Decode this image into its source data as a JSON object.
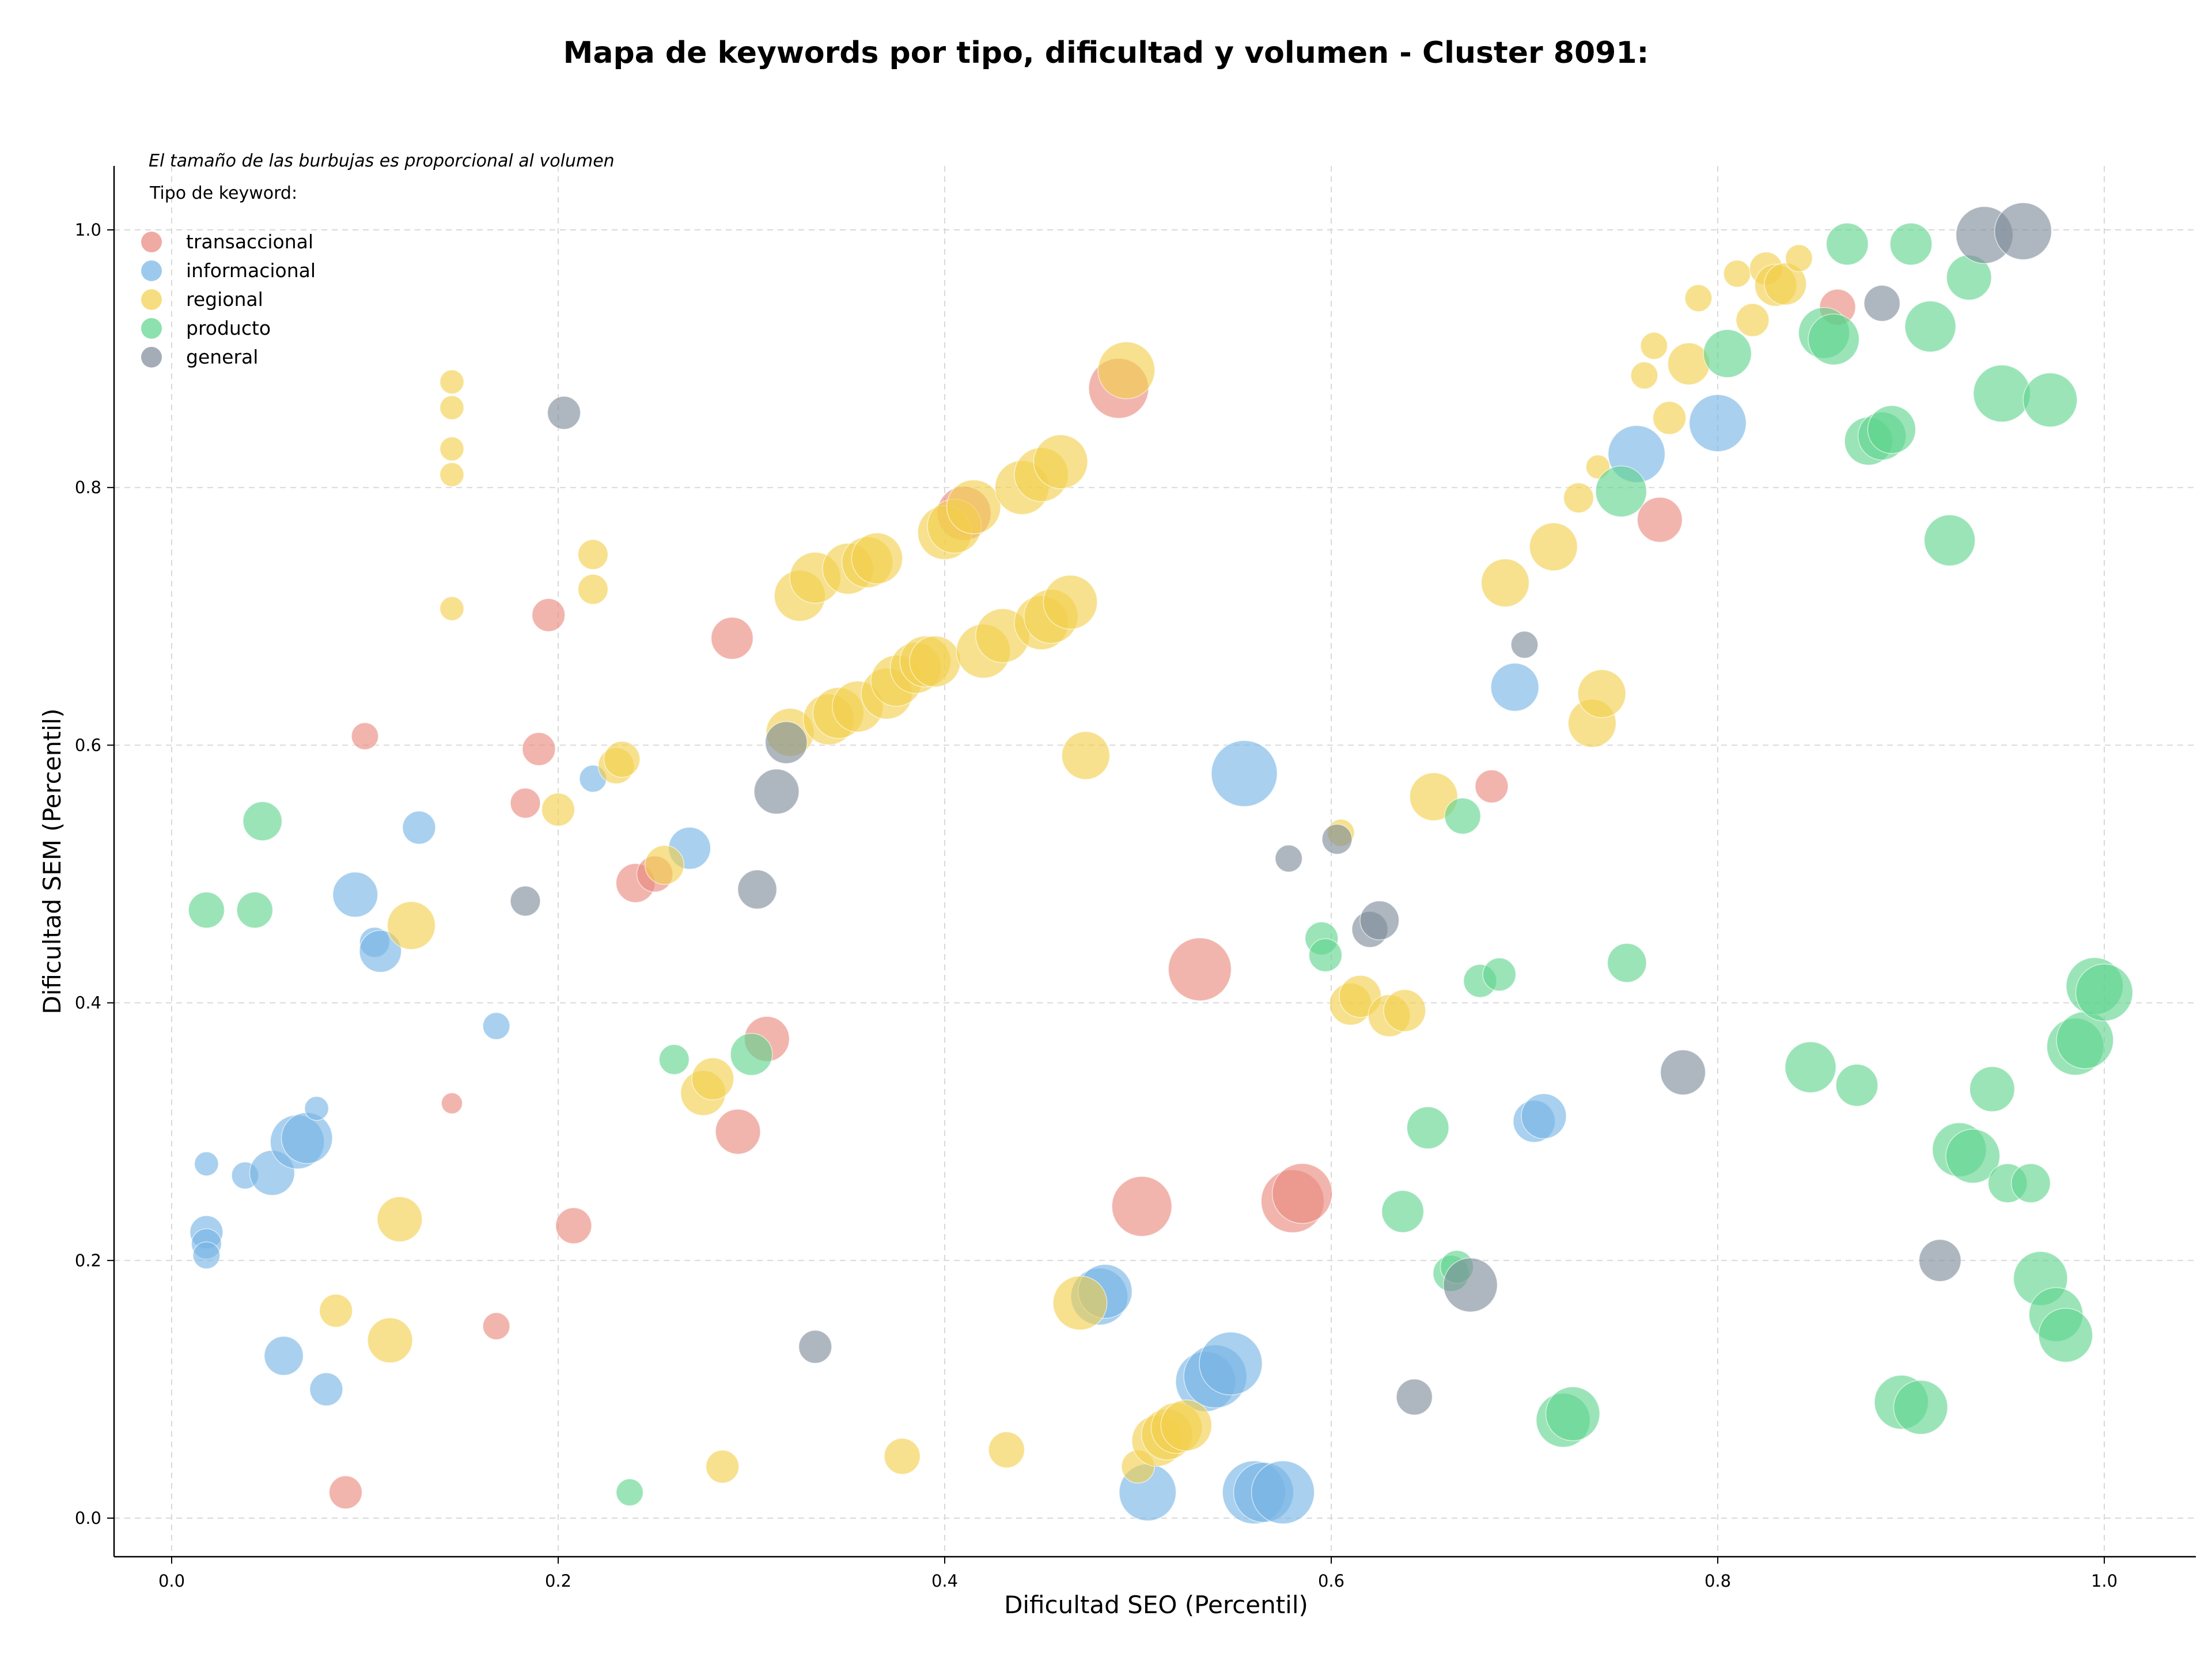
{
  "chart_data": {
    "type": "scatter",
    "title": "Mapa de keywords por tipo, dificultad y volumen - Cluster 8091:",
    "xlabel": "Dificultad SEO (Percentil)",
    "ylabel": "Dificultad SEM (Percentil)",
    "xlim": [
      -0.03,
      1.05
    ],
    "ylim": [
      -0.03,
      1.05
    ],
    "xticks": [
      "0.0",
      "0.2",
      "0.4",
      "0.6",
      "0.8",
      "1.0"
    ],
    "yticks": [
      "0.0",
      "0.2",
      "0.4",
      "0.6",
      "0.8",
      "1.0"
    ],
    "grid": true,
    "note": "El tamaño de las burbujas es proporcional al volumen",
    "legend_title": "Tipo de keyword:",
    "legend_position": "top-left",
    "series": [
      {
        "name": "transaccional",
        "color": "#E8887C",
        "points": [
          [
            0.09,
            0.02,
            0.55
          ],
          [
            0.1,
            0.607,
            0.45
          ],
          [
            0.145,
            0.322,
            0.35
          ],
          [
            0.168,
            0.149,
            0.45
          ],
          [
            0.183,
            0.555,
            0.5
          ],
          [
            0.19,
            0.597,
            0.55
          ],
          [
            0.195,
            0.701,
            0.55
          ],
          [
            0.208,
            0.227,
            0.6
          ],
          [
            0.24,
            0.493,
            0.65
          ],
          [
            0.25,
            0.5,
            0.6
          ],
          [
            0.29,
            0.683,
            0.7
          ],
          [
            0.293,
            0.3,
            0.75
          ],
          [
            0.308,
            0.372,
            0.75
          ],
          [
            0.41,
            0.78,
            0.9
          ],
          [
            0.49,
            0.877,
            1.0
          ],
          [
            0.502,
            0.242,
            1.0
          ],
          [
            0.532,
            0.426,
            1.05
          ],
          [
            0.58,
            0.246,
            1.05
          ],
          [
            0.585,
            0.252,
            1.0
          ],
          [
            0.683,
            0.568,
            0.55
          ],
          [
            0.77,
            0.775,
            0.75
          ],
          [
            0.862,
            0.94,
            0.6
          ]
        ]
      },
      {
        "name": "informacional",
        "color": "#74B3E4",
        "points": [
          [
            0.018,
            0.275,
            0.4
          ],
          [
            0.018,
            0.222,
            0.55
          ],
          [
            0.018,
            0.213,
            0.5
          ],
          [
            0.018,
            0.204,
            0.45
          ],
          [
            0.038,
            0.266,
            0.45
          ],
          [
            0.052,
            0.268,
            0.75
          ],
          [
            0.058,
            0.126,
            0.65
          ],
          [
            0.065,
            0.292,
            0.9
          ],
          [
            0.07,
            0.295,
            0.85
          ],
          [
            0.075,
            0.318,
            0.4
          ],
          [
            0.08,
            0.1,
            0.55
          ],
          [
            0.095,
            0.484,
            0.75
          ],
          [
            0.105,
            0.447,
            0.5
          ],
          [
            0.108,
            0.44,
            0.7
          ],
          [
            0.128,
            0.536,
            0.55
          ],
          [
            0.168,
            0.382,
            0.45
          ],
          [
            0.218,
            0.574,
            0.45
          ],
          [
            0.268,
            0.52,
            0.7
          ],
          [
            0.48,
            0.172,
            0.95
          ],
          [
            0.483,
            0.176,
            0.9
          ],
          [
            0.505,
            0.02,
            0.95
          ],
          [
            0.535,
            0.106,
            1.0
          ],
          [
            0.54,
            0.11,
            1.05
          ],
          [
            0.548,
            0.12,
            1.05
          ],
          [
            0.555,
            0.578,
            1.1
          ],
          [
            0.56,
            0.02,
            1.05
          ],
          [
            0.565,
            0.02,
            1.0
          ],
          [
            0.575,
            0.02,
            1.05
          ],
          [
            0.695,
            0.645,
            0.8
          ],
          [
            0.705,
            0.308,
            0.7
          ],
          [
            0.71,
            0.312,
            0.75
          ],
          [
            0.758,
            0.826,
            0.95
          ],
          [
            0.8,
            0.85,
            0.95
          ]
        ]
      },
      {
        "name": "regional",
        "color": "#F2CF4A",
        "points": [
          [
            0.085,
            0.161,
            0.55
          ],
          [
            0.113,
            0.138,
            0.75
          ],
          [
            0.118,
            0.232,
            0.75
          ],
          [
            0.124,
            0.46,
            0.8
          ],
          [
            0.145,
            0.882,
            0.4
          ],
          [
            0.145,
            0.862,
            0.4
          ],
          [
            0.145,
            0.83,
            0.4
          ],
          [
            0.145,
            0.81,
            0.4
          ],
          [
            0.145,
            0.706,
            0.4
          ],
          [
            0.2,
            0.55,
            0.55
          ],
          [
            0.218,
            0.748,
            0.5
          ],
          [
            0.218,
            0.721,
            0.5
          ],
          [
            0.23,
            0.584,
            0.6
          ],
          [
            0.233,
            0.589,
            0.6
          ],
          [
            0.255,
            0.507,
            0.65
          ],
          [
            0.275,
            0.33,
            0.75
          ],
          [
            0.28,
            0.341,
            0.7
          ],
          [
            0.285,
            0.04,
            0.55
          ],
          [
            0.32,
            0.61,
            0.8
          ],
          [
            0.325,
            0.716,
            0.85
          ],
          [
            0.333,
            0.73,
            0.85
          ],
          [
            0.34,
            0.62,
            0.85
          ],
          [
            0.345,
            0.625,
            0.85
          ],
          [
            0.35,
            0.737,
            0.85
          ],
          [
            0.355,
            0.63,
            0.85
          ],
          [
            0.36,
            0.742,
            0.85
          ],
          [
            0.365,
            0.745,
            0.85
          ],
          [
            0.37,
            0.64,
            0.85
          ],
          [
            0.375,
            0.65,
            0.85
          ],
          [
            0.385,
            0.66,
            0.85
          ],
          [
            0.39,
            0.665,
            0.85
          ],
          [
            0.395,
            0.665,
            0.85
          ],
          [
            0.378,
            0.048,
            0.6
          ],
          [
            0.4,
            0.765,
            0.9
          ],
          [
            0.405,
            0.77,
            0.9
          ],
          [
            0.415,
            0.785,
            0.9
          ],
          [
            0.42,
            0.673,
            0.9
          ],
          [
            0.43,
            0.685,
            0.9
          ],
          [
            0.432,
            0.053,
            0.6
          ],
          [
            0.44,
            0.8,
            0.9
          ],
          [
            0.45,
            0.81,
            0.9
          ],
          [
            0.45,
            0.695,
            0.9
          ],
          [
            0.455,
            0.7,
            0.9
          ],
          [
            0.46,
            0.82,
            0.9
          ],
          [
            0.465,
            0.711,
            0.9
          ],
          [
            0.47,
            0.167,
            0.9
          ],
          [
            0.473,
            0.592,
            0.8
          ],
          [
            0.494,
            0.891,
            0.95
          ],
          [
            0.5,
            0.04,
            0.55
          ],
          [
            0.51,
            0.06,
            0.85
          ],
          [
            0.515,
            0.065,
            0.85
          ],
          [
            0.52,
            0.07,
            0.85
          ],
          [
            0.525,
            0.072,
            0.85
          ],
          [
            0.605,
            0.532,
            0.45
          ],
          [
            0.61,
            0.399,
            0.7
          ],
          [
            0.615,
            0.405,
            0.7
          ],
          [
            0.63,
            0.39,
            0.7
          ],
          [
            0.638,
            0.394,
            0.7
          ],
          [
            0.653,
            0.56,
            0.8
          ],
          [
            0.69,
            0.726,
            0.8
          ],
          [
            0.715,
            0.754,
            0.8
          ],
          [
            0.728,
            0.792,
            0.5
          ],
          [
            0.735,
            0.617,
            0.8
          ],
          [
            0.74,
            0.64,
            0.8
          ],
          [
            0.738,
            0.816,
            0.4
          ],
          [
            0.762,
            0.887,
            0.45
          ],
          [
            0.767,
            0.91,
            0.45
          ],
          [
            0.775,
            0.854,
            0.55
          ],
          [
            0.785,
            0.896,
            0.7
          ],
          [
            0.79,
            0.947,
            0.45
          ],
          [
            0.81,
            0.966,
            0.45
          ],
          [
            0.818,
            0.93,
            0.55
          ],
          [
            0.825,
            0.97,
            0.55
          ],
          [
            0.83,
            0.957,
            0.7
          ],
          [
            0.835,
            0.958,
            0.7
          ],
          [
            0.842,
            0.978,
            0.45
          ]
        ]
      },
      {
        "name": "producto",
        "color": "#5DD48C",
        "points": [
          [
            0.018,
            0.472,
            0.6
          ],
          [
            0.043,
            0.472,
            0.6
          ],
          [
            0.047,
            0.541,
            0.65
          ],
          [
            0.237,
            0.02,
            0.45
          ],
          [
            0.26,
            0.356,
            0.5
          ],
          [
            0.3,
            0.36,
            0.7
          ],
          [
            0.595,
            0.45,
            0.55
          ],
          [
            0.597,
            0.437,
            0.55
          ],
          [
            0.637,
            0.238,
            0.7
          ],
          [
            0.65,
            0.303,
            0.7
          ],
          [
            0.662,
            0.19,
            0.6
          ],
          [
            0.665,
            0.195,
            0.55
          ],
          [
            0.668,
            0.545,
            0.6
          ],
          [
            0.677,
            0.417,
            0.55
          ],
          [
            0.687,
            0.422,
            0.55
          ],
          [
            0.72,
            0.076,
            0.9
          ],
          [
            0.725,
            0.081,
            0.9
          ],
          [
            0.75,
            0.797,
            0.85
          ],
          [
            0.753,
            0.431,
            0.65
          ],
          [
            0.805,
            0.904,
            0.8
          ],
          [
            0.848,
            0.35,
            0.85
          ],
          [
            0.855,
            0.92,
            0.85
          ],
          [
            0.86,
            0.915,
            0.85
          ],
          [
            0.867,
            0.989,
            0.7
          ],
          [
            0.872,
            0.336,
            0.7
          ],
          [
            0.878,
            0.836,
            0.8
          ],
          [
            0.885,
            0.84,
            0.8
          ],
          [
            0.89,
            0.845,
            0.8
          ],
          [
            0.895,
            0.09,
            0.9
          ],
          [
            0.9,
            0.989,
            0.7
          ],
          [
            0.905,
            0.086,
            0.9
          ],
          [
            0.91,
            0.925,
            0.85
          ],
          [
            0.92,
            0.759,
            0.85
          ],
          [
            0.925,
            0.286,
            0.9
          ],
          [
            0.93,
            0.963,
            0.75
          ],
          [
            0.932,
            0.281,
            0.9
          ],
          [
            0.942,
            0.333,
            0.75
          ],
          [
            0.947,
            0.873,
            0.95
          ],
          [
            0.95,
            0.26,
            0.65
          ],
          [
            0.962,
            0.26,
            0.65
          ],
          [
            0.967,
            0.186,
            0.9
          ],
          [
            0.972,
            0.868,
            0.9
          ],
          [
            0.975,
            0.158,
            0.9
          ],
          [
            0.98,
            0.142,
            0.9
          ],
          [
            0.985,
            0.366,
            0.95
          ],
          [
            0.99,
            0.371,
            0.95
          ],
          [
            0.995,
            0.413,
            0.95
          ],
          [
            1.0,
            0.408,
            0.95
          ]
        ]
      },
      {
        "name": "general",
        "color": "#7D8A98",
        "points": [
          [
            0.183,
            0.479,
            0.5
          ],
          [
            0.203,
            0.858,
            0.55
          ],
          [
            0.303,
            0.488,
            0.65
          ],
          [
            0.313,
            0.564,
            0.75
          ],
          [
            0.318,
            0.602,
            0.7
          ],
          [
            0.333,
            0.133,
            0.55
          ],
          [
            0.578,
            0.512,
            0.45
          ],
          [
            0.603,
            0.527,
            0.5
          ],
          [
            0.62,
            0.457,
            0.6
          ],
          [
            0.625,
            0.464,
            0.65
          ],
          [
            0.643,
            0.094,
            0.6
          ],
          [
            0.672,
            0.181,
            0.9
          ],
          [
            0.7,
            0.678,
            0.45
          ],
          [
            0.782,
            0.346,
            0.75
          ],
          [
            0.885,
            0.943,
            0.6
          ],
          [
            0.915,
            0.2,
            0.7
          ],
          [
            0.938,
            0.996,
            0.95
          ],
          [
            0.958,
            0.999,
            0.95
          ]
        ]
      }
    ]
  }
}
